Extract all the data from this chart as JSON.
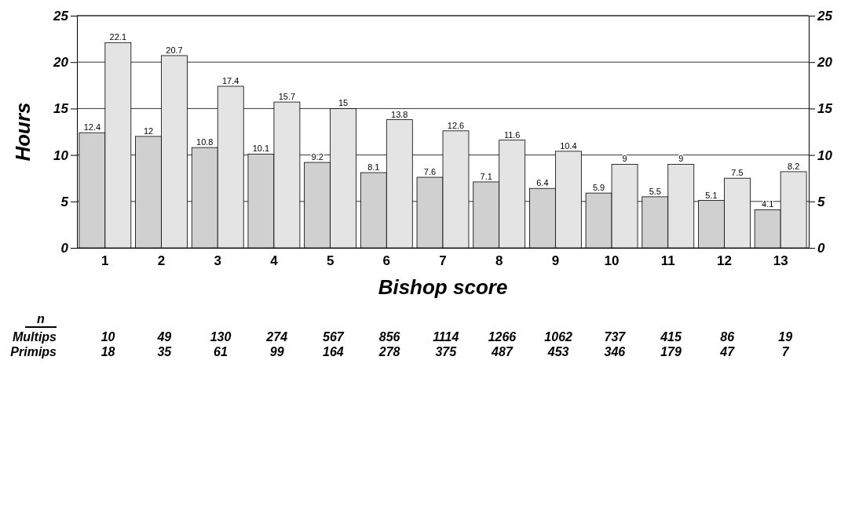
{
  "chart_data": {
    "type": "bar",
    "xlabel": "Bishop score",
    "ylabel": "Hours",
    "categories": [
      "1",
      "2",
      "3",
      "4",
      "5",
      "6",
      "7",
      "8",
      "9",
      "10",
      "11",
      "12",
      "13"
    ],
    "series": [
      {
        "color": "#d0d0d0",
        "values": [
          12.4,
          12,
          10.8,
          10.1,
          9.2,
          8.1,
          7.6,
          7.1,
          6.4,
          5.9,
          5.5,
          5.1,
          4.1
        ]
      },
      {
        "color": "#e4e4e4",
        "values": [
          22.1,
          20.7,
          17.4,
          15.7,
          15,
          13.8,
          12.6,
          11.6,
          10.4,
          9,
          9,
          7.5,
          8.2
        ]
      }
    ],
    "ylim": [
      0,
      25
    ],
    "yticks": [
      0,
      5,
      10,
      15,
      20,
      25
    ],
    "y2lim": [
      0,
      25
    ],
    "y2ticks": [
      0,
      5,
      10,
      15,
      20,
      25
    ],
    "grid": "y",
    "data_labels": true,
    "annotations": [
      "n",
      "Multips",
      "10 49 130 274 567 856 1114 1266 1062 737 415 86 19",
      "Primips",
      "18 35 61 99 164 278 375 487 453 346 179 47 7"
    ]
  }
}
